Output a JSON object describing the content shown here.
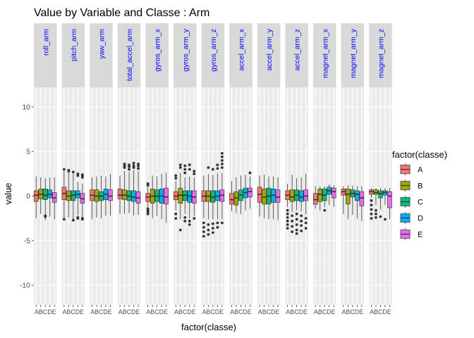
{
  "chart_data": {
    "type": "box",
    "title": "Value by Variable and Classe : Arm",
    "xlabel": "factor(classe)",
    "ylabel": "value",
    "ylim": [
      -12.2,
      12.2
    ],
    "y_ticks": [
      -10,
      -5,
      0,
      5,
      10
    ],
    "facets": [
      "roll_arm",
      "pitch_arm",
      "yaw_arm",
      "total_accel_arm",
      "gyros_arm_x",
      "gyros_arm_y",
      "gyros_arm_z",
      "accel_arm_x",
      "accel_arm_y",
      "accel_arm_z",
      "magnet_arm_x",
      "magnet_arm_y",
      "magnet_arm_z"
    ],
    "categories": [
      "A",
      "B",
      "C",
      "D",
      "E"
    ],
    "x_tick_labels": "ABCDE",
    "legend": {
      "title": "factor(classe)",
      "placement": "right",
      "entries": [
        "A",
        "B",
        "C",
        "D",
        "E"
      ],
      "colors": [
        "#F8766D",
        "#A3A500",
        "#00BF7D",
        "#00B0F6",
        "#E76BF3"
      ]
    },
    "grid": true,
    "facet_label_color": "#0000ff",
    "panel_background": "#ebebeb",
    "strip_background": "#d9d9d9",
    "series": [
      {
        "facet": "roll_arm",
        "boxes": [
          {
            "classe": "A",
            "lower": -2.5,
            "q1": -0.6,
            "median": 0.1,
            "q3": 0.6,
            "upper": 2.2,
            "outliers": []
          },
          {
            "classe": "B",
            "lower": -2.0,
            "q1": -0.3,
            "median": 0.2,
            "q3": 0.8,
            "upper": 2.1,
            "outliers": []
          },
          {
            "classe": "C",
            "lower": -2.7,
            "q1": -0.4,
            "median": 0.1,
            "q3": 0.8,
            "upper": 2.0,
            "outliers": [
              -2.2,
              -2.3
            ]
          },
          {
            "classe": "D",
            "lower": -2.3,
            "q1": -0.2,
            "median": 0.2,
            "q3": 0.7,
            "upper": 2.1,
            "outliers": []
          },
          {
            "classe": "E",
            "lower": -2.6,
            "q1": -0.7,
            "median": -0.2,
            "q3": 0.4,
            "upper": 2.1,
            "outliers": []
          }
        ]
      },
      {
        "facet": "pitch_arm",
        "boxes": [
          {
            "classe": "A",
            "lower": -2.5,
            "q1": -0.4,
            "median": 0.3,
            "q3": 1.0,
            "upper": 2.8,
            "outliers": [
              3.0,
              -2.6
            ]
          },
          {
            "classe": "B",
            "lower": -2.4,
            "q1": -0.5,
            "median": 0.0,
            "q3": 0.6,
            "upper": 2.7,
            "outliers": [
              2.9,
              2.8
            ]
          },
          {
            "classe": "C",
            "lower": -2.6,
            "q1": -0.5,
            "median": 0.1,
            "q3": 0.6,
            "upper": 2.5,
            "outliers": [
              2.7,
              -2.7
            ]
          },
          {
            "classe": "D",
            "lower": -2.2,
            "q1": -0.2,
            "median": 0.2,
            "q3": 0.6,
            "upper": 1.6,
            "outliers": [
              2.5,
              2.3,
              -2.4,
              -2.5
            ]
          },
          {
            "classe": "E",
            "lower": -2.4,
            "q1": -0.8,
            "median": -0.3,
            "q3": 0.3,
            "upper": 1.4,
            "outliers": [
              2.4,
              2.3,
              2.1,
              -2.5,
              -2.6
            ]
          }
        ]
      },
      {
        "facet": "yaw_arm",
        "boxes": [
          {
            "classe": "A",
            "lower": -2.6,
            "q1": -0.5,
            "median": 0.1,
            "q3": 0.7,
            "upper": 2.1,
            "outliers": []
          },
          {
            "classe": "B",
            "lower": -2.4,
            "q1": -0.6,
            "median": 0.0,
            "q3": 0.7,
            "upper": 2.2,
            "outliers": []
          },
          {
            "classe": "C",
            "lower": -2.5,
            "q1": -0.5,
            "median": 0.0,
            "q3": 0.5,
            "upper": 2.3,
            "outliers": []
          },
          {
            "classe": "D",
            "lower": -2.2,
            "q1": -0.4,
            "median": 0.2,
            "q3": 0.8,
            "upper": 2.2,
            "outliers": []
          },
          {
            "classe": "E",
            "lower": -2.2,
            "q1": -0.5,
            "median": 0.0,
            "q3": 0.7,
            "upper": 2.5,
            "outliers": []
          }
        ]
      },
      {
        "facet": "total_accel_arm",
        "boxes": [
          {
            "classe": "A",
            "lower": -2.0,
            "q1": -0.3,
            "median": 0.1,
            "q3": 0.8,
            "upper": 2.3,
            "outliers": []
          },
          {
            "classe": "B",
            "lower": -2.0,
            "q1": -0.4,
            "median": 0.1,
            "q3": 0.7,
            "upper": 2.8,
            "outliers": [
              3.6,
              3.4,
              3.2
            ]
          },
          {
            "classe": "C",
            "lower": -1.9,
            "q1": -0.5,
            "median": 0.0,
            "q3": 0.6,
            "upper": 2.7,
            "outliers": [
              3.5,
              3.3,
              3.0
            ]
          },
          {
            "classe": "D",
            "lower": -2.2,
            "q1": -0.6,
            "median": -0.1,
            "q3": 0.6,
            "upper": 2.9,
            "outliers": [
              3.7,
              3.4,
              3.2
            ]
          },
          {
            "classe": "E",
            "lower": -2.1,
            "q1": -0.8,
            "median": -0.2,
            "q3": 0.5,
            "upper": 2.8,
            "outliers": [
              3.6,
              3.4,
              3.1
            ]
          }
        ]
      },
      {
        "facet": "gyros_arm_x",
        "boxes": [
          {
            "classe": "A",
            "lower": -1.2,
            "q1": -0.6,
            "median": -0.1,
            "q3": 0.3,
            "upper": 1.0,
            "outliers": [
              1.4,
              1.2,
              -1.4,
              -1.6,
              -1.8,
              -2.0
            ]
          },
          {
            "classe": "B",
            "lower": -2.5,
            "q1": -0.8,
            "median": 0.0,
            "q3": 0.8,
            "upper": 2.3,
            "outliers": []
          },
          {
            "classe": "C",
            "lower": -2.2,
            "q1": -0.6,
            "median": 0.0,
            "q3": 0.7,
            "upper": 2.2,
            "outliers": []
          },
          {
            "classe": "D",
            "lower": -2.6,
            "q1": -0.8,
            "median": 0.0,
            "q3": 0.8,
            "upper": 2.5,
            "outliers": []
          },
          {
            "classe": "E",
            "lower": -3.0,
            "q1": -0.9,
            "median": -0.1,
            "q3": 0.9,
            "upper": 2.6,
            "outliers": []
          }
        ]
      },
      {
        "facet": "gyros_arm_y",
        "boxes": [
          {
            "classe": "A",
            "lower": -1.6,
            "q1": -0.4,
            "median": 0.0,
            "q3": 0.5,
            "upper": 1.7,
            "outliers": [
              2.3,
              2.0,
              -2.0,
              -2.5
            ]
          },
          {
            "classe": "B",
            "lower": -2.6,
            "q1": -0.8,
            "median": 0.1,
            "q3": 0.9,
            "upper": 2.6,
            "outliers": [
              3.2,
              3.5,
              -3.8
            ]
          },
          {
            "classe": "C",
            "lower": -2.0,
            "q1": -0.5,
            "median": 0.1,
            "q3": 0.6,
            "upper": 2.1,
            "outliers": [
              2.6,
              3.0,
              3.4,
              -2.4,
              -2.8
            ]
          },
          {
            "classe": "D",
            "lower": -2.5,
            "q1": -0.7,
            "median": 0.0,
            "q3": 0.6,
            "upper": 2.2,
            "outliers": [
              3.0,
              3.5,
              -2.8,
              -3.2
            ]
          },
          {
            "classe": "E",
            "lower": -2.2,
            "q1": -0.8,
            "median": -0.1,
            "q3": 0.6,
            "upper": 2.1,
            "outliers": [
              2.5,
              2.8,
              -2.5
            ]
          }
        ]
      },
      {
        "facet": "gyros_arm_z",
        "boxes": [
          {
            "classe": "A",
            "lower": -2.5,
            "q1": -0.6,
            "median": 0.0,
            "q3": 0.6,
            "upper": 2.3,
            "outliers": [
              -3.0,
              -3.5,
              -4.0,
              -4.5
            ]
          },
          {
            "classe": "B",
            "lower": -2.6,
            "q1": -0.6,
            "median": 0.0,
            "q3": 0.6,
            "upper": 2.5,
            "outliers": [
              3.2,
              -3.2,
              -3.8,
              -4.3
            ]
          },
          {
            "classe": "C",
            "lower": -2.6,
            "q1": -0.7,
            "median": -0.1,
            "q3": 0.6,
            "upper": 2.4,
            "outliers": [
              3.0,
              -3.1,
              -3.6,
              -4.1
            ]
          },
          {
            "classe": "D",
            "lower": -2.6,
            "q1": -0.5,
            "median": 0.0,
            "q3": 0.6,
            "upper": 2.6,
            "outliers": [
              3.1,
              3.5,
              -3.0,
              -3.5
            ]
          },
          {
            "classe": "E",
            "lower": -2.6,
            "q1": -0.6,
            "median": 0.1,
            "q3": 0.7,
            "upper": 2.6,
            "outliers": [
              3.2,
              3.6,
              4.0,
              4.4,
              4.8,
              -3.0
            ]
          }
        ]
      },
      {
        "facet": "accel_arm_x",
        "boxes": [
          {
            "classe": "A",
            "lower": -1.7,
            "q1": -0.9,
            "median": -0.4,
            "q3": 0.3,
            "upper": 1.7,
            "outliers": []
          },
          {
            "classe": "B",
            "lower": -1.9,
            "q1": -1.0,
            "median": -0.2,
            "q3": 0.5,
            "upper": 2.1,
            "outliers": []
          },
          {
            "classe": "C",
            "lower": -2.0,
            "q1": -0.5,
            "median": 0.1,
            "q3": 0.7,
            "upper": 2.3,
            "outliers": []
          },
          {
            "classe": "D",
            "lower": -1.6,
            "q1": -0.2,
            "median": 0.4,
            "q3": 0.9,
            "upper": 2.4,
            "outliers": []
          },
          {
            "classe": "E",
            "lower": -1.4,
            "q1": -0.1,
            "median": 0.5,
            "q3": 0.9,
            "upper": 2.2,
            "outliers": [
              2.6
            ]
          }
        ]
      },
      {
        "facet": "accel_arm_y",
        "boxes": [
          {
            "classe": "A",
            "lower": -2.3,
            "q1": -0.7,
            "median": 0.2,
            "q3": 1.0,
            "upper": 2.3,
            "outliers": []
          },
          {
            "classe": "B",
            "lower": -2.5,
            "q1": -0.9,
            "median": -0.1,
            "q3": 0.8,
            "upper": 2.4,
            "outliers": []
          },
          {
            "classe": "C",
            "lower": -2.6,
            "q1": -0.9,
            "median": 0.0,
            "q3": 0.9,
            "upper": 2.2,
            "outliers": []
          },
          {
            "classe": "D",
            "lower": -2.6,
            "q1": -0.7,
            "median": 0.1,
            "q3": 0.8,
            "upper": 2.2,
            "outliers": []
          },
          {
            "classe": "E",
            "lower": -2.7,
            "q1": -0.7,
            "median": -0.1,
            "q3": 0.7,
            "upper": 2.1,
            "outliers": []
          }
        ]
      },
      {
        "facet": "accel_arm_z",
        "boxes": [
          {
            "classe": "A",
            "lower": -1.2,
            "q1": -0.4,
            "median": 0.1,
            "q3": 0.6,
            "upper": 1.4,
            "outliers": [
              -1.6,
              -2.0,
              -2.4,
              -2.8,
              -3.2,
              -3.6
            ]
          },
          {
            "classe": "B",
            "lower": -1.8,
            "q1": -0.6,
            "median": -0.1,
            "q3": 0.7,
            "upper": 2.4,
            "outliers": [
              -2.2,
              -2.8,
              -3.4,
              -4.0
            ]
          },
          {
            "classe": "C",
            "lower": -1.6,
            "q1": -0.5,
            "median": 0.1,
            "q3": 0.7,
            "upper": 2.0,
            "outliers": [
              -2.0,
              -2.6,
              -3.2,
              -3.8,
              -4.2
            ]
          },
          {
            "classe": "D",
            "lower": -1.7,
            "q1": -0.6,
            "median": -0.1,
            "q3": 0.6,
            "upper": 2.1,
            "outliers": [
              -2.2,
              -2.8,
              -3.3,
              -3.9
            ]
          },
          {
            "classe": "E",
            "lower": -2.0,
            "q1": -0.5,
            "median": 0.0,
            "q3": 0.7,
            "upper": 2.5,
            "outliers": [
              -2.5,
              -3.0,
              -3.6
            ]
          }
        ]
      },
      {
        "facet": "magnet_arm_x",
        "boxes": [
          {
            "classe": "A",
            "lower": -1.4,
            "q1": -0.9,
            "median": -0.4,
            "q3": 0.3,
            "upper": 1.1,
            "outliers": []
          },
          {
            "classe": "B",
            "lower": -1.6,
            "q1": -0.6,
            "median": 0.2,
            "q3": 0.8,
            "upper": 1.1,
            "outliers": []
          },
          {
            "classe": "C",
            "lower": -1.2,
            "q1": -0.5,
            "median": 0.1,
            "q3": 0.8,
            "upper": 1.1,
            "outliers": [
              -1.6
            ]
          },
          {
            "classe": "D",
            "lower": -1.0,
            "q1": 0.2,
            "median": 0.6,
            "q3": 1.0,
            "upper": 1.3,
            "outliers": []
          },
          {
            "classe": "E",
            "lower": -1.2,
            "q1": -0.2,
            "median": 0.5,
            "q3": 0.9,
            "upper": 1.2,
            "outliers": []
          }
        ]
      },
      {
        "facet": "magnet_arm_y",
        "boxes": [
          {
            "classe": "A",
            "lower": -2.0,
            "q1": 0.1,
            "median": 0.5,
            "q3": 0.8,
            "upper": 1.1,
            "outliers": []
          },
          {
            "classe": "B",
            "lower": -2.6,
            "q1": -0.9,
            "median": 0.2,
            "q3": 0.8,
            "upper": 1.2,
            "outliers": []
          },
          {
            "classe": "C",
            "lower": -2.1,
            "q1": -0.1,
            "median": 0.3,
            "q3": 0.7,
            "upper": 1.2,
            "outliers": []
          },
          {
            "classe": "D",
            "lower": -2.5,
            "q1": -0.5,
            "median": 0.2,
            "q3": 0.6,
            "upper": 1.1,
            "outliers": []
          },
          {
            "classe": "E",
            "lower": -2.8,
            "q1": -1.1,
            "median": -0.2,
            "q3": 0.5,
            "upper": 1.1,
            "outliers": []
          }
        ]
      },
      {
        "facet": "magnet_arm_z",
        "boxes": [
          {
            "classe": "A",
            "lower": -0.2,
            "q1": 0.2,
            "median": 0.5,
            "q3": 0.7,
            "upper": 0.9,
            "outliers": [
              -0.5,
              -1.0,
              -1.5,
              -2.0,
              -2.5
            ]
          },
          {
            "classe": "B",
            "lower": -1.0,
            "q1": 0.2,
            "median": 0.4,
            "q3": 0.7,
            "upper": 0.9,
            "outliers": [
              -1.6,
              -2.0,
              -2.4
            ]
          },
          {
            "classe": "C",
            "lower": -1.5,
            "q1": -0.2,
            "median": 0.3,
            "q3": 0.6,
            "upper": 0.9,
            "outliers": [
              -2.3
            ]
          },
          {
            "classe": "D",
            "lower": -1.0,
            "q1": 0.1,
            "median": 0.4,
            "q3": 0.6,
            "upper": 0.9,
            "outliers": [
              -2.6
            ]
          },
          {
            "classe": "E",
            "lower": -2.6,
            "q1": -1.3,
            "median": 0.0,
            "q3": 0.5,
            "upper": 0.9,
            "outliers": []
          }
        ]
      }
    ]
  }
}
